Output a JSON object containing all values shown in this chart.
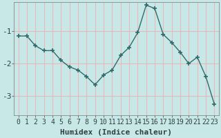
{
  "x": [
    0,
    1,
    2,
    3,
    4,
    5,
    6,
    7,
    8,
    9,
    10,
    11,
    12,
    13,
    14,
    15,
    16,
    17,
    18,
    19,
    20,
    21,
    22,
    23
  ],
  "y": [
    -1.15,
    -1.15,
    -1.45,
    -1.6,
    -1.6,
    -1.9,
    -2.1,
    -2.2,
    -2.4,
    -2.65,
    -2.35,
    -2.2,
    -1.75,
    -1.5,
    -1.05,
    -0.2,
    -0.3,
    -1.1,
    -1.35,
    -1.65,
    -2.0,
    -1.8,
    -2.4,
    -3.25
  ],
  "line_color": "#2e6b6b",
  "marker": "+",
  "marker_size": 4,
  "marker_linewidth": 1.2,
  "line_width": 1.0,
  "bg_color": "#c8e8e8",
  "grid_color": "#e8b8b8",
  "xlabel": "Humidex (Indice chaleur)",
  "xlim_min": -0.5,
  "xlim_max": 23.5,
  "ylim_min": -3.6,
  "ylim_max": -0.1,
  "yticks": [
    -3,
    -2,
    -1
  ],
  "xticks": [
    0,
    1,
    2,
    3,
    4,
    5,
    6,
    7,
    8,
    9,
    10,
    11,
    12,
    13,
    14,
    15,
    16,
    17,
    18,
    19,
    20,
    21,
    22,
    23
  ],
  "xlabel_fontsize": 8,
  "tick_fontsize": 7,
  "tick_color": "#2e4040"
}
